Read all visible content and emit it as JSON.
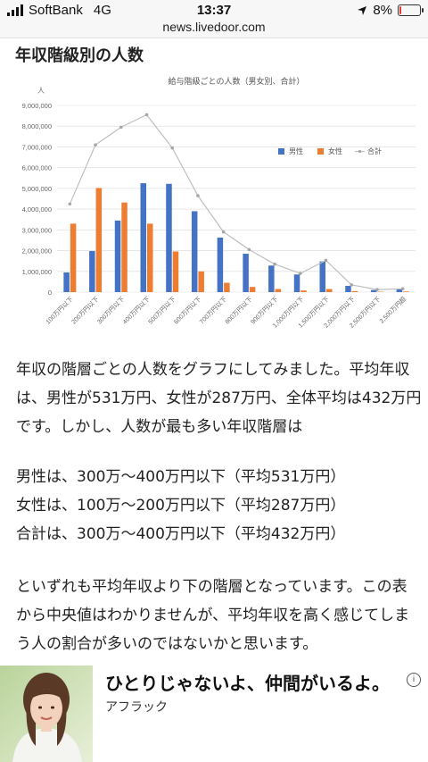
{
  "status_bar": {
    "carrier": "SoftBank",
    "network": "4G",
    "time": "13:37",
    "battery": "8%",
    "battery_level": 0.08
  },
  "browser": {
    "url": "news.livedoor.com"
  },
  "article": {
    "heading": "年収階級別の人数",
    "paragraph1": "年収の階層ごとの人数をグラフにしてみました。平均年収は、男性が531万円、女性が287万円、全体平均は432万円です。しかし、人数が最も多い年収階層は",
    "paragraph2_lines": [
      "男性は、300万～400万円以下（平均531万円）",
      "女性は、100万～200万円以下（平均287万円）",
      "合計は、300万～400万円以下（平均432万円）"
    ],
    "paragraph3": "といずれも平均年収より下の階層となっています。この表から中央値はわかりませんが、平均年収を高く感じてしまう人の割合が多いのではないかと思います。"
  },
  "chart_data": {
    "type": "bar",
    "title": "給与階級ごとの人数（男女別、合計）",
    "ylabel": "人",
    "ylim": [
      0,
      9000000
    ],
    "yticks": [
      "0",
      "1,000,000",
      "2,000,000",
      "3,000,000",
      "4,000,000",
      "5,000,000",
      "6,000,000",
      "7,000,000",
      "8,000,000",
      "9,000,000"
    ],
    "grid": true,
    "legend_position": "top-right",
    "categories": [
      "100万円以下",
      "200万円以下",
      "300万円以下",
      "400万円以下",
      "500万円以下",
      "600万円以下",
      "700万円以下",
      "800万円以下",
      "900万円以下",
      "1,000万円以下",
      "1,500万円以下",
      "2,000万円以下",
      "2,500万円以下",
      "2,500万円超"
    ],
    "series": [
      {
        "name": "男性",
        "type": "bar",
        "color": "#4472c4",
        "values": [
          950000,
          1980000,
          3450000,
          5250000,
          5220000,
          3900000,
          2630000,
          1850000,
          1280000,
          850000,
          1480000,
          300000,
          100000,
          130000
        ]
      },
      {
        "name": "女性",
        "type": "bar",
        "color": "#ed7d31",
        "values": [
          3300000,
          5020000,
          4320000,
          3300000,
          1960000,
          1000000,
          450000,
          250000,
          150000,
          80000,
          150000,
          50000,
          20000,
          30000
        ]
      },
      {
        "name": "合計",
        "type": "line",
        "color": "#bfbfbf",
        "values": [
          4250000,
          7100000,
          7950000,
          8550000,
          6950000,
          4650000,
          2900000,
          2050000,
          1350000,
          900000,
          1530000,
          350000,
          120000,
          160000
        ]
      }
    ]
  },
  "ad": {
    "title": "ひとりじゃないよ、仲間がいるよ。",
    "sponsor": "アフラック",
    "info_label": "i"
  }
}
